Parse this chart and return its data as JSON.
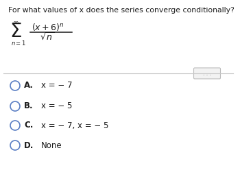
{
  "question": "For what values of x does the series converge conditionally?",
  "options": [
    {
      "label": "A.",
      "text": "x = − 7"
    },
    {
      "label": "B.",
      "text": "x = − 5"
    },
    {
      "label": "C.",
      "text": "x = − 7, x = − 5"
    },
    {
      "label": "D.",
      "text": "None"
    }
  ],
  "bg_color": "#ffffff",
  "text_color": "#1a1a1a",
  "circle_color": "#5b7fc4",
  "label_color": "#1a1a1a",
  "separator_color": "#c8c8c8",
  "dots_bg": "#f2f2f2",
  "dots_border": "#bbbbbb"
}
